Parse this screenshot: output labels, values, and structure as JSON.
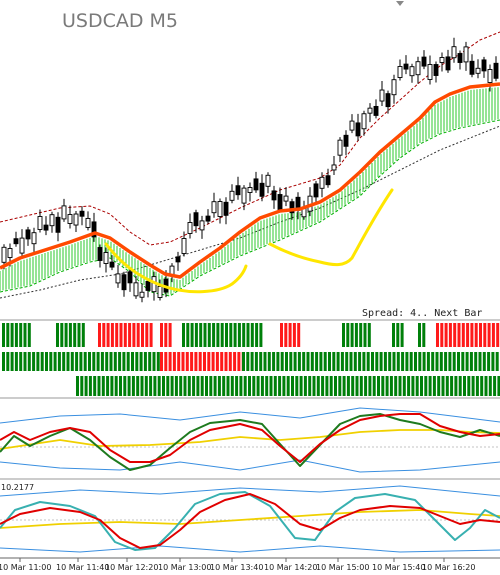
{
  "chart": {
    "symbol_title": "USDCAD M5",
    "spread_text": "Spread: 4.. Next Bar",
    "indicator_value": "10.2177",
    "time_labels": [
      "10 Mar 11:00",
      "10 Mar 11:40",
      "10 Mar 12:20",
      "10 Mar 13:00",
      "10 Mar 13:40",
      "10 Mar 14:20",
      "10 Mar 15:00",
      "10 Mar 15:40",
      "10 Mar 16:20"
    ],
    "colors": {
      "up_candle": "#ffffff",
      "down_candle": "#000000",
      "orange_ma": "#ff4a00",
      "green_band": "#00b000",
      "red_band": "#aa0000",
      "yellow_annotation": "#ffe600",
      "bar_green": "#00800a",
      "bar_red": "#ff1a1a",
      "osc_red": "#e00000",
      "osc_green": "#1e7a1e",
      "osc_yellow": "#f0d000",
      "osc_blue": "#3a8fe0",
      "osc_teal": "#38b0b0"
    }
  }
}
